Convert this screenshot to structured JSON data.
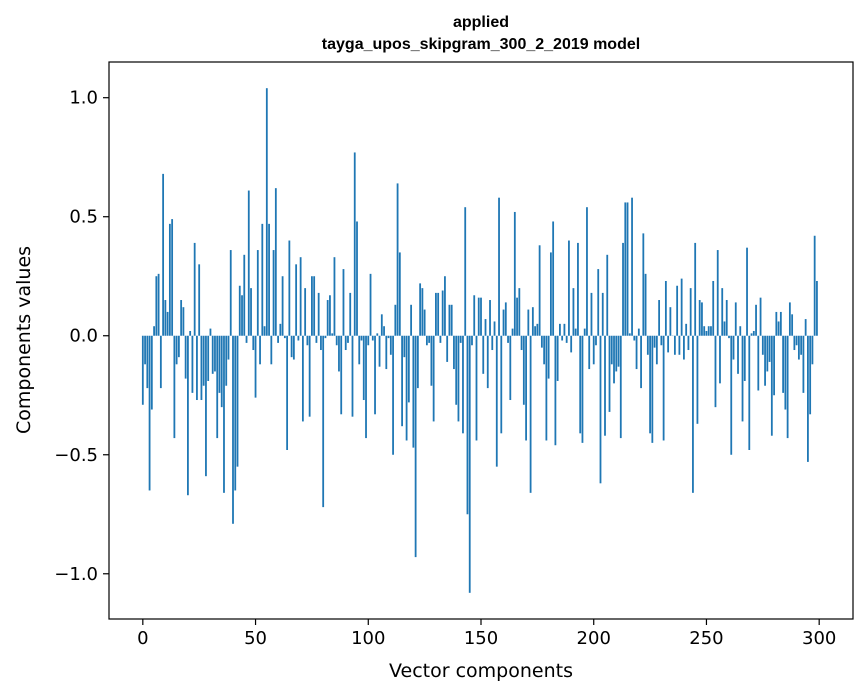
{
  "chart_data": {
    "type": "bar",
    "title_lines": [
      "applied",
      "tayga_upos_skipgram_300_2_2019 model"
    ],
    "xlabel": "Vector components",
    "ylabel": "Components values",
    "xlim": [
      -15,
      315
    ],
    "ylim": [
      -1.19,
      1.15
    ],
    "xticks": [
      0,
      50,
      100,
      150,
      200,
      250,
      300
    ],
    "xtick_labels": [
      "0",
      "50",
      "100",
      "150",
      "200",
      "250",
      "300"
    ],
    "yticks": [
      -1.0,
      -0.5,
      0.0,
      0.5,
      1.0
    ],
    "ytick_labels": [
      "−1.0",
      "−0.5",
      "0.0",
      "0.5",
      "1.0"
    ],
    "bar_color": "#1f77b4",
    "grid": false,
    "series": [
      {
        "name": "components",
        "x_start": 0,
        "values": [
          -0.29,
          -0.12,
          -0.22,
          -0.65,
          -0.31,
          0.04,
          0.25,
          0.26,
          -0.22,
          0.68,
          0.15,
          0.1,
          0.47,
          0.49,
          -0.43,
          -0.12,
          -0.09,
          0.15,
          0.12,
          -0.18,
          -0.67,
          0.02,
          -0.24,
          0.39,
          -0.27,
          0.3,
          -0.27,
          -0.21,
          -0.59,
          -0.19,
          0.03,
          -0.16,
          -0.15,
          -0.43,
          -0.24,
          -0.3,
          -0.66,
          -0.21,
          -0.1,
          0.36,
          -0.79,
          -0.65,
          -0.55,
          0.21,
          0.17,
          0.34,
          -0.03,
          0.61,
          0.2,
          -0.06,
          -0.26,
          0.36,
          -0.12,
          0.47,
          0.04,
          1.04,
          0.47,
          -0.12,
          0.36,
          0.62,
          -0.03,
          0.05,
          0.25,
          -0.01,
          -0.48,
          0.4,
          -0.09,
          -0.1,
          0.3,
          -0.02,
          0.33,
          -0.36,
          0.2,
          -0.04,
          -0.34,
          0.25,
          0.25,
          -0.03,
          0.18,
          -0.06,
          -0.72,
          -0.01,
          0.15,
          0.17,
          0.01,
          0.33,
          -0.04,
          -0.15,
          -0.33,
          0.28,
          -0.06,
          -0.03,
          0.18,
          -0.34,
          0.77,
          0.48,
          -0.12,
          -0.02,
          -0.27,
          -0.43,
          -0.04,
          0.26,
          -0.02,
          -0.33,
          0.01,
          -0.13,
          0.09,
          0.04,
          -0.14,
          -0.01,
          -0.08,
          -0.5,
          0.13,
          0.64,
          0.35,
          -0.38,
          -0.09,
          -0.44,
          -0.28,
          0.13,
          -0.47,
          -0.93,
          -0.22,
          0.22,
          0.2,
          0.11,
          -0.04,
          -0.03,
          -0.21,
          -0.36,
          0.18,
          0.18,
          -0.03,
          0.19,
          0.25,
          -0.11,
          0.13,
          0.13,
          -0.14,
          -0.29,
          -0.36,
          -0.03,
          -0.41,
          0.54,
          -0.75,
          -1.08,
          -0.04,
          0.17,
          -0.44,
          0.16,
          0.16,
          -0.16,
          0.07,
          -0.22,
          0.15,
          -0.06,
          0.06,
          -0.55,
          0.58,
          -0.41,
          0.11,
          0.14,
          -0.03,
          -0.27,
          0.03,
          0.52,
          0.16,
          0.2,
          -0.06,
          -0.29,
          -0.44,
          0.11,
          -0.66,
          0.12,
          0.04,
          0.05,
          0.38,
          -0.05,
          -0.12,
          -0.44,
          -0.18,
          0.35,
          0.48,
          -0.46,
          -0.19,
          0.05,
          -0.02,
          0.05,
          -0.03,
          0.4,
          -0.07,
          0.2,
          0.03,
          0.39,
          -0.41,
          -0.45,
          0.03,
          0.54,
          -0.14,
          0.18,
          -0.12,
          -0.04,
          0.28,
          -0.62,
          0.18,
          -0.42,
          0.34,
          -0.32,
          -0.12,
          -0.2,
          -0.15,
          -0.13,
          -0.43,
          0.39,
          0.56,
          0.56,
          0.01,
          0.58,
          -0.02,
          -0.14,
          0.03,
          -0.22,
          0.43,
          0.26,
          -0.08,
          -0.41,
          -0.45,
          -0.05,
          -0.12,
          0.15,
          -0.04,
          -0.44,
          0.23,
          -0.07,
          0.12,
          0.0,
          -0.08,
          0.21,
          -0.08,
          0.24,
          -0.1,
          0.05,
          -0.06,
          0.2,
          -0.66,
          0.39,
          -0.37,
          0.15,
          0.14,
          0.04,
          0.02,
          0.04,
          0.04,
          0.23,
          -0.3,
          0.36,
          -0.2,
          0.2,
          0.06,
          0.15,
          -0.01,
          -0.5,
          -0.1,
          0.14,
          -0.16,
          0.04,
          -0.36,
          -0.19,
          0.37,
          -0.48,
          0.01,
          0.02,
          0.13,
          -0.23,
          0.16,
          -0.08,
          -0.21,
          -0.15,
          -0.11,
          -0.42,
          -0.25,
          0.1,
          0.06,
          0.1,
          -0.24,
          -0.31,
          -0.43,
          0.14,
          0.09,
          -0.06,
          -0.04,
          -0.1,
          -0.08,
          -0.24,
          0.07,
          -0.53,
          -0.33,
          -0.12,
          0.42,
          0.23
        ]
      }
    ]
  }
}
